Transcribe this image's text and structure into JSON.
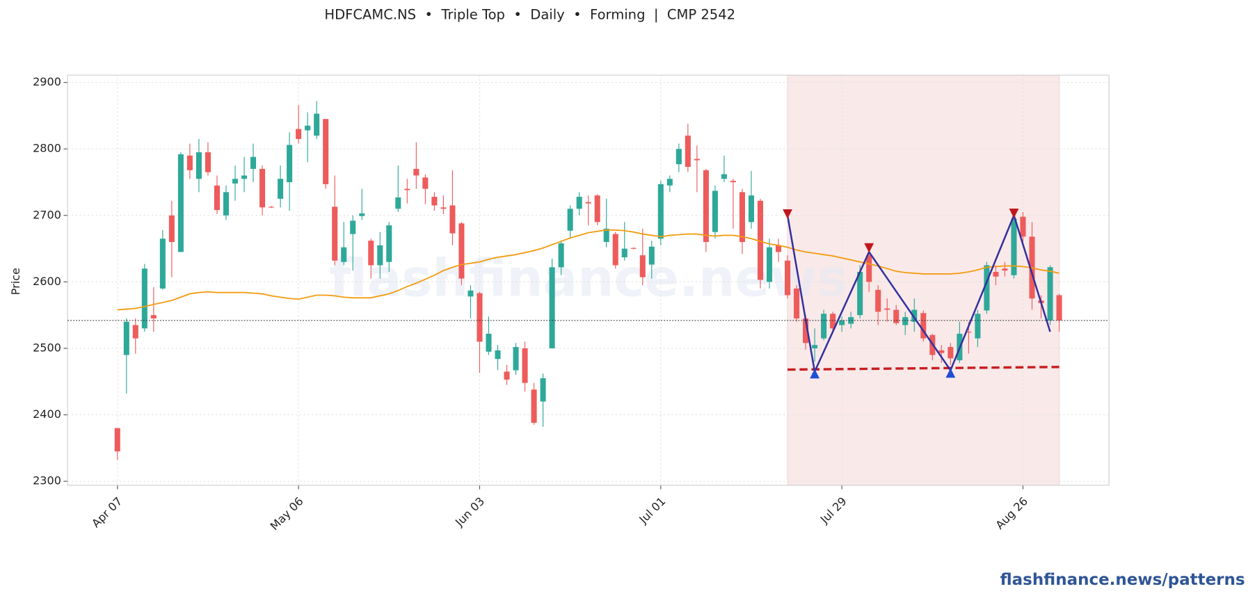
{
  "chart_data": {
    "type": "candlestick",
    "title": "HDFCAMC.NS  •  Triple Top  •  Daily  •  Forming  |  CMP 2542",
    "ylabel": "Price",
    "watermark": "flashfinance.news",
    "footer": "flashfinance.news/patterns",
    "categories": [
      "Apr 07",
      null,
      null,
      null,
      null,
      null,
      null,
      null,
      null,
      null,
      null,
      null,
      null,
      null,
      null,
      null,
      null,
      null,
      null,
      null,
      "May 06",
      null,
      null,
      null,
      null,
      null,
      null,
      null,
      null,
      null,
      null,
      null,
      null,
      null,
      null,
      null,
      null,
      null,
      null,
      null,
      "Jun 03",
      null,
      null,
      null,
      null,
      null,
      null,
      null,
      null,
      null,
      null,
      null,
      null,
      null,
      null,
      null,
      null,
      null,
      null,
      null,
      "Jul 01",
      null,
      null,
      null,
      null,
      null,
      null,
      null,
      null,
      null,
      null,
      null,
      null,
      null,
      null,
      null,
      null,
      null,
      null,
      null,
      "Jul 29",
      null,
      null,
      null,
      null,
      null,
      null,
      null,
      null,
      null,
      null,
      null,
      null,
      null,
      null,
      null,
      null,
      null,
      null,
      null,
      "Aug 26",
      null,
      null,
      null,
      null
    ],
    "open": [
      2380,
      2490,
      2535,
      2530,
      2550,
      2590,
      2700,
      2645,
      2790,
      2755,
      2795,
      2745,
      2700,
      2748,
      2755,
      2770,
      2770,
      2713,
      2725,
      2750,
      2830,
      2828,
      2820,
      2845,
      2713,
      2630,
      2672,
      2699,
      2662,
      2625,
      2630,
      2710,
      2740,
      2770,
      2757,
      2728,
      2712,
      2715,
      2688,
      2578,
      2583,
      2495,
      2484,
      2465,
      2467,
      2500,
      2438,
      2420,
      2500,
      2622,
      2677,
      2710,
      2720,
      2730,
      2660,
      2672,
      2637,
      2651,
      2640,
      2626,
      2665,
      2745,
      2777,
      2820,
      2785,
      2768,
      2675,
      2755,
      2752,
      2735,
      2690,
      2722,
      2600,
      2655,
      2632,
      2590,
      2545,
      2500,
      2515,
      2552,
      2535,
      2537,
      2550,
      2640,
      2588,
      2560,
      2558,
      2535,
      2540,
      2553,
      2520,
      2497,
      2502,
      2482,
      2525,
      2515,
      2557,
      2615,
      2620,
      2610,
      2698,
      2668,
      2572,
      2542,
      2580
    ],
    "high": [
      2380,
      2545,
      2545,
      2627,
      2592,
      2678,
      2722,
      2795,
      2808,
      2815,
      2810,
      2760,
      2745,
      2775,
      2788,
      2808,
      2775,
      2714,
      2775,
      2825,
      2866,
      2855,
      2872,
      2845,
      2760,
      2690,
      2700,
      2740,
      2665,
      2675,
      2690,
      2775,
      2755,
      2810,
      2762,
      2735,
      2730,
      2768,
      2690,
      2595,
      2585,
      2548,
      2505,
      2475,
      2508,
      2510,
      2448,
      2462,
      2635,
      2662,
      2715,
      2735,
      2730,
      2732,
      2725,
      2675,
      2690,
      2652,
      2680,
      2662,
      2752,
      2760,
      2808,
      2838,
      2805,
      2770,
      2745,
      2790,
      2755,
      2740,
      2767,
      2725,
      2665,
      2665,
      2640,
      2595,
      2550,
      2530,
      2558,
      2555,
      2548,
      2555,
      2625,
      2648,
      2595,
      2575,
      2565,
      2555,
      2575,
      2557,
      2522,
      2505,
      2508,
      2540,
      2540,
      2558,
      2630,
      2625,
      2630,
      2700,
      2705,
      2690,
      2580,
      2625,
      2582
    ],
    "low": [
      2332,
      2432,
      2492,
      2525,
      2525,
      2588,
      2607,
      2645,
      2755,
      2735,
      2760,
      2702,
      2693,
      2722,
      2735,
      2750,
      2700,
      2711,
      2712,
      2707,
      2808,
      2780,
      2815,
      2740,
      2625,
      2625,
      2617,
      2693,
      2605,
      2605,
      2615,
      2705,
      2718,
      2740,
      2717,
      2707,
      2702,
      2655,
      2595,
      2545,
      2463,
      2490,
      2467,
      2445,
      2460,
      2435,
      2385,
      2382,
      2500,
      2610,
      2665,
      2700,
      2685,
      2685,
      2652,
      2620,
      2632,
      2649,
      2595,
      2605,
      2655,
      2735,
      2765,
      2765,
      2735,
      2645,
      2665,
      2750,
      2680,
      2642,
      2680,
      2590,
      2590,
      2630,
      2575,
      2540,
      2498,
      2480,
      2512,
      2522,
      2525,
      2530,
      2545,
      2585,
      2535,
      2540,
      2535,
      2520,
      2525,
      2510,
      2482,
      2478,
      2475,
      2478,
      2492,
      2502,
      2552,
      2595,
      2608,
      2605,
      2660,
      2558,
      2545,
      2535,
      2525
    ],
    "close": [
      2345,
      2540,
      2515,
      2620,
      2545,
      2665,
      2660,
      2792,
      2768,
      2795,
      2765,
      2708,
      2735,
      2755,
      2760,
      2788,
      2712,
      2712,
      2755,
      2806,
      2815,
      2835,
      2853,
      2747,
      2632,
      2652,
      2692,
      2703,
      2625,
      2655,
      2685,
      2727,
      2738,
      2760,
      2740,
      2715,
      2710,
      2673,
      2605,
      2587,
      2510,
      2522,
      2497,
      2453,
      2502,
      2448,
      2388,
      2455,
      2622,
      2658,
      2710,
      2728,
      2718,
      2690,
      2680,
      2625,
      2650,
      2650,
      2607,
      2653,
      2747,
      2755,
      2800,
      2773,
      2783,
      2660,
      2737,
      2762,
      2750,
      2660,
      2730,
      2603,
      2652,
      2645,
      2580,
      2545,
      2508,
      2505,
      2552,
      2530,
      2542,
      2547,
      2615,
      2600,
      2555,
      2558,
      2538,
      2547,
      2558,
      2515,
      2490,
      2493,
      2485,
      2522,
      2524,
      2552,
      2625,
      2608,
      2617,
      2695,
      2668,
      2575,
      2568,
      2622,
      2542
    ],
    "up_color": "#2ea899",
    "down_color": "#ee5b5b",
    "ma": {
      "color": "#f39c12",
      "values": [
        2558,
        2559,
        2560,
        2563,
        2566,
        2569,
        2572,
        2577,
        2582,
        2584,
        2585,
        2584,
        2584,
        2584,
        2584,
        2583,
        2582,
        2579,
        2577,
        2575,
        2574,
        2577,
        2580,
        2580,
        2579,
        2577,
        2576,
        2576,
        2576,
        2579,
        2582,
        2587,
        2593,
        2598,
        2604,
        2610,
        2617,
        2622,
        2626,
        2628,
        2630,
        2634,
        2637,
        2639,
        2641,
        2644,
        2647,
        2651,
        2656,
        2661,
        2666,
        2670,
        2674,
        2676,
        2678,
        2678,
        2677,
        2675,
        2672,
        2670,
        2668,
        2670,
        2671,
        2672,
        2672,
        2670,
        2669,
        2670,
        2670,
        2668,
        2665,
        2661,
        2657,
        2655,
        2652,
        2648,
        2645,
        2643,
        2641,
        2639,
        2636,
        2633,
        2630,
        2627,
        2624,
        2620,
        2616,
        2614,
        2613,
        2612,
        2612,
        2612,
        2612,
        2613,
        2615,
        2618,
        2622,
        2623,
        2624,
        2624,
        2623,
        2621,
        2618,
        2616,
        2613
      ]
    },
    "cmp": 2542,
    "zone": [
      74,
      104
    ],
    "pattern": {
      "color": "#33309e",
      "x": [
        74,
        77,
        83,
        92,
        99,
        103
      ],
      "values": [
        2700,
        2465,
        2645,
        2467,
        2700,
        2525
      ]
    },
    "peaks": {
      "color": "#c0171c",
      "x": [
        74,
        83,
        99
      ],
      "values": [
        2702,
        2651,
        2703
      ]
    },
    "troughs": {
      "color": "#1f4fd6",
      "x": [
        77,
        92
      ],
      "values": [
        2462,
        2463
      ]
    },
    "support": {
      "color": "#c81e22",
      "x": [
        74,
        104
      ],
      "values": [
        2468,
        2472
      ]
    },
    "xlim": [
      -5.5,
      109.5
    ],
    "ylim": [
      2294,
      2911
    ],
    "yticks": [
      2300,
      2400,
      2500,
      2600,
      2700,
      2800,
      2900
    ],
    "grid": true
  }
}
